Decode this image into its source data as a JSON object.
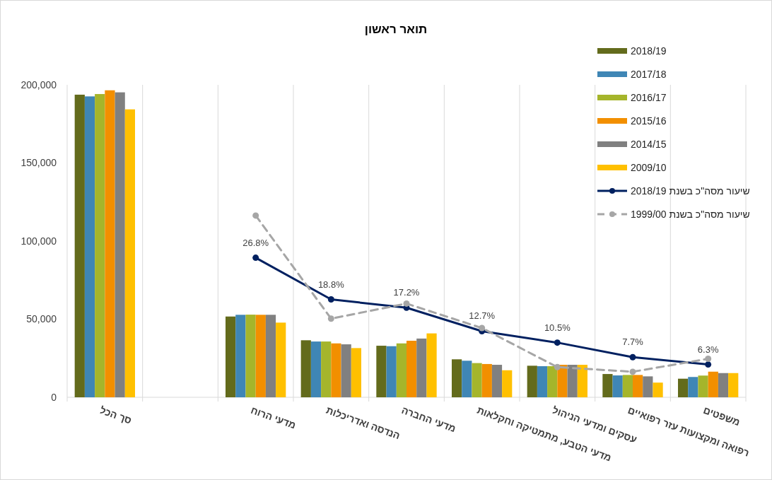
{
  "chart_data": {
    "type": "bar",
    "title": "תואר ראשון",
    "categories": [
      "סך הכל",
      null,
      "מדעי הרוח",
      "הנדסה ואדריכלות",
      "מדעי החברה",
      "מדעי הטבע, מתמטיקה וחקלאות",
      "עסקים ומדעי הניהול",
      "רפואה ומקצועות עזר רפואיים",
      "משפטים"
    ],
    "series": [
      {
        "name": "2018/19",
        "color": "#636b1c",
        "values": [
          193700,
          null,
          51700,
          36500,
          33000,
          24300,
          20200,
          14900,
          11900
        ]
      },
      {
        "name": "2017/18",
        "color": "#3f86b5",
        "values": [
          192600,
          null,
          52800,
          35700,
          32700,
          23400,
          19900,
          14000,
          13000
        ]
      },
      {
        "name": "2016/17",
        "color": "#a5b52b",
        "values": [
          194100,
          null,
          52900,
          35700,
          34500,
          21900,
          19900,
          14300,
          13900
        ]
      },
      {
        "name": "2015/16",
        "color": "#f28f00",
        "values": [
          196500,
          null,
          52800,
          34500,
          36200,
          21300,
          20800,
          14300,
          16400
        ]
      },
      {
        "name": "2014/15",
        "color": "#808080",
        "values": [
          195200,
          null,
          52800,
          33900,
          37600,
          20800,
          20800,
          13400,
          15500
        ]
      },
      {
        "name": "2009/10",
        "color": "#ffc000",
        "values": [
          184300,
          null,
          47800,
          31500,
          40900,
          17300,
          20800,
          9400,
          15500
        ]
      },
      {
        "name": "שיעור מסה\"כ בשנת 2018/19",
        "type": "line",
        "axis": "y2",
        "color": "#002060",
        "line_style": "solid",
        "values": [
          null,
          null,
          26.8,
          18.8,
          17.2,
          12.7,
          10.5,
          7.7,
          6.3
        ],
        "value_labels": [
          null,
          null,
          "26.8%",
          "18.8%",
          "17.2%",
          "12.7%",
          "10.5%",
          "7.7%",
          "6.3%"
        ]
      },
      {
        "name": "שיעור מסה\"כ בשנת 1999/00",
        "type": "line",
        "axis": "y2",
        "color": "#a6a6a6",
        "line_style": "dashed",
        "values": [
          null,
          null,
          34.9,
          15.1,
          18.0,
          13.3,
          5.8,
          4.9,
          7.4
        ]
      }
    ],
    "ylim": [
      0,
      200000
    ],
    "yticks": [
      {
        "value": 0,
        "label": "0"
      },
      {
        "value": 50000,
        "label": "50,000"
      },
      {
        "value": 100000,
        "label": "100,000"
      },
      {
        "value": 150000,
        "label": "150,000"
      },
      {
        "value": 200000,
        "label": "200,000"
      }
    ],
    "y2lim": [
      0,
      60
    ],
    "grid": "x",
    "legend": "top right",
    "marker": "circle"
  }
}
